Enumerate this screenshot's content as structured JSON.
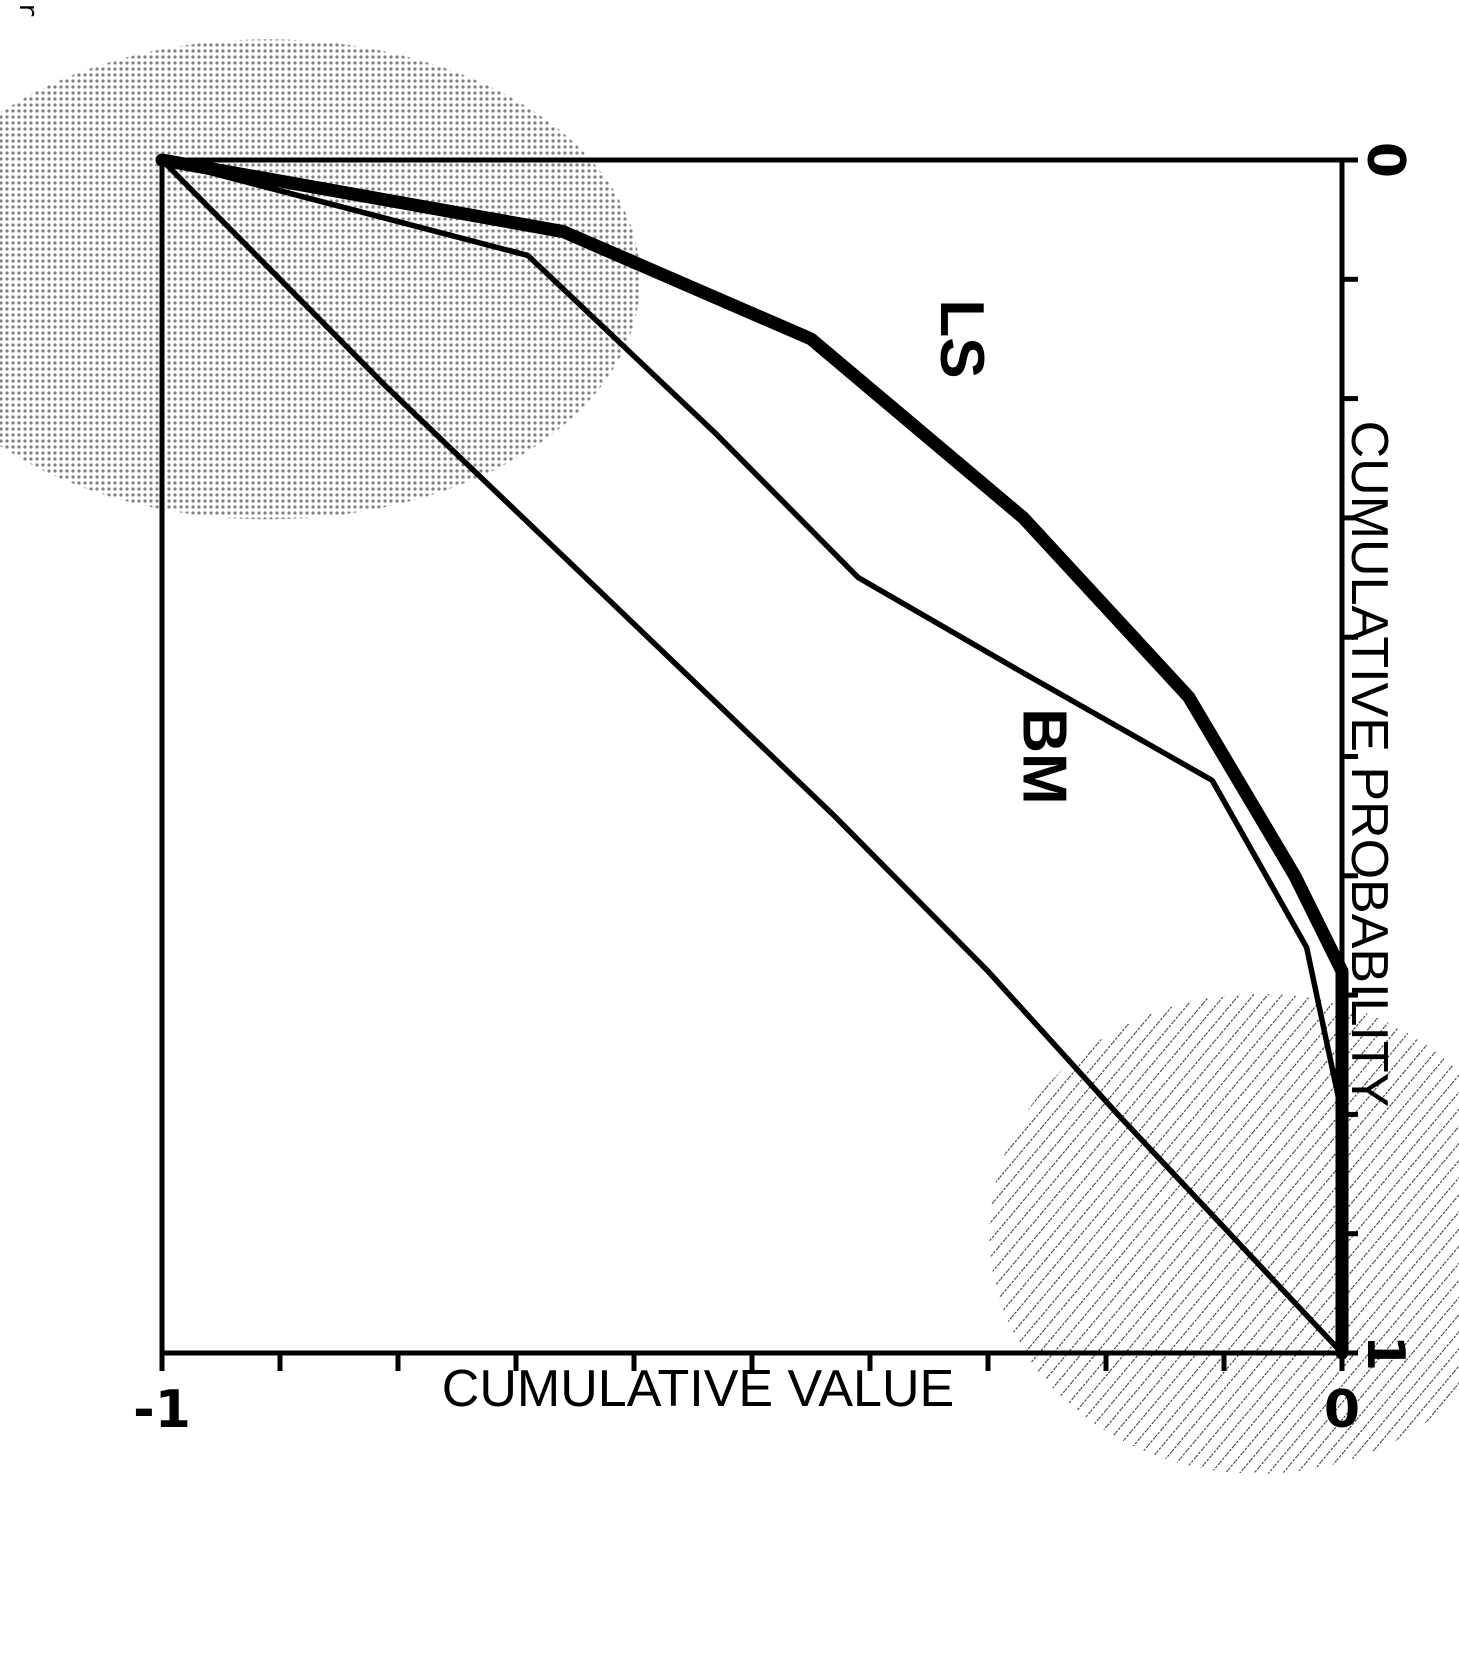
{
  "figure": {
    "caption_fragment": "Figur"
  },
  "chart_data": {
    "type": "line",
    "xlabel": "CUMULATIVE PROBABILITY",
    "ylabel": "CUMULATIVE VALUE",
    "xlim": [
      0,
      1
    ],
    "ylim": [
      -1,
      0
    ],
    "x_ticks": [
      0,
      0.1,
      0.2,
      0.3,
      0.4,
      0.5,
      0.6,
      0.7,
      0.8,
      0.9,
      1
    ],
    "x_tick_labels": [
      "0",
      "",
      "",
      "",
      "",
      "",
      "",
      "",
      "",
      "",
      "1"
    ],
    "y_ticks": [
      -1,
      -0.9,
      -0.8,
      -0.7,
      -0.6,
      -0.5,
      -0.4,
      -0.3,
      -0.2,
      -0.1,
      0
    ],
    "y_tick_labels": [
      "-1",
      "",
      "",
      "",
      "",
      "",
      "",
      "",
      "",
      "",
      "0"
    ],
    "grid": false,
    "series": [
      {
        "name": "LS",
        "style": "thick",
        "x": [
          0,
          0.06,
          0.15,
          0.3,
          0.45,
          0.6,
          0.68,
          1.0
        ],
        "y": [
          -1,
          -0.66,
          -0.45,
          -0.27,
          -0.13,
          -0.04,
          0,
          0
        ]
      },
      {
        "name": "BM",
        "style": "medium",
        "x": [
          0,
          0.08,
          0.23,
          0.35,
          0.43,
          0.52,
          0.66,
          0.8,
          1.0
        ],
        "y": [
          -1,
          -0.69,
          -0.53,
          -0.41,
          -0.27,
          -0.11,
          -0.03,
          0,
          0
        ]
      },
      {
        "name": "",
        "style": "medium",
        "x": [
          0,
          0.19,
          0.37,
          0.55,
          0.68,
          0.8,
          1.0
        ],
        "y": [
          -1,
          -0.81,
          -0.62,
          -0.43,
          -0.3,
          -0.19,
          0
        ]
      }
    ],
    "annotations": [
      {
        "text": "BM",
        "x": 0.5,
        "y": -0.27
      },
      {
        "text": "LS",
        "x": 0.15,
        "y": -0.34
      }
    ],
    "shaded_regions": [
      {
        "pattern": "dots",
        "center": [
          0.1,
          -0.91
        ]
      },
      {
        "pattern": "hatch",
        "center": [
          0.9,
          -0.07
        ]
      }
    ]
  }
}
